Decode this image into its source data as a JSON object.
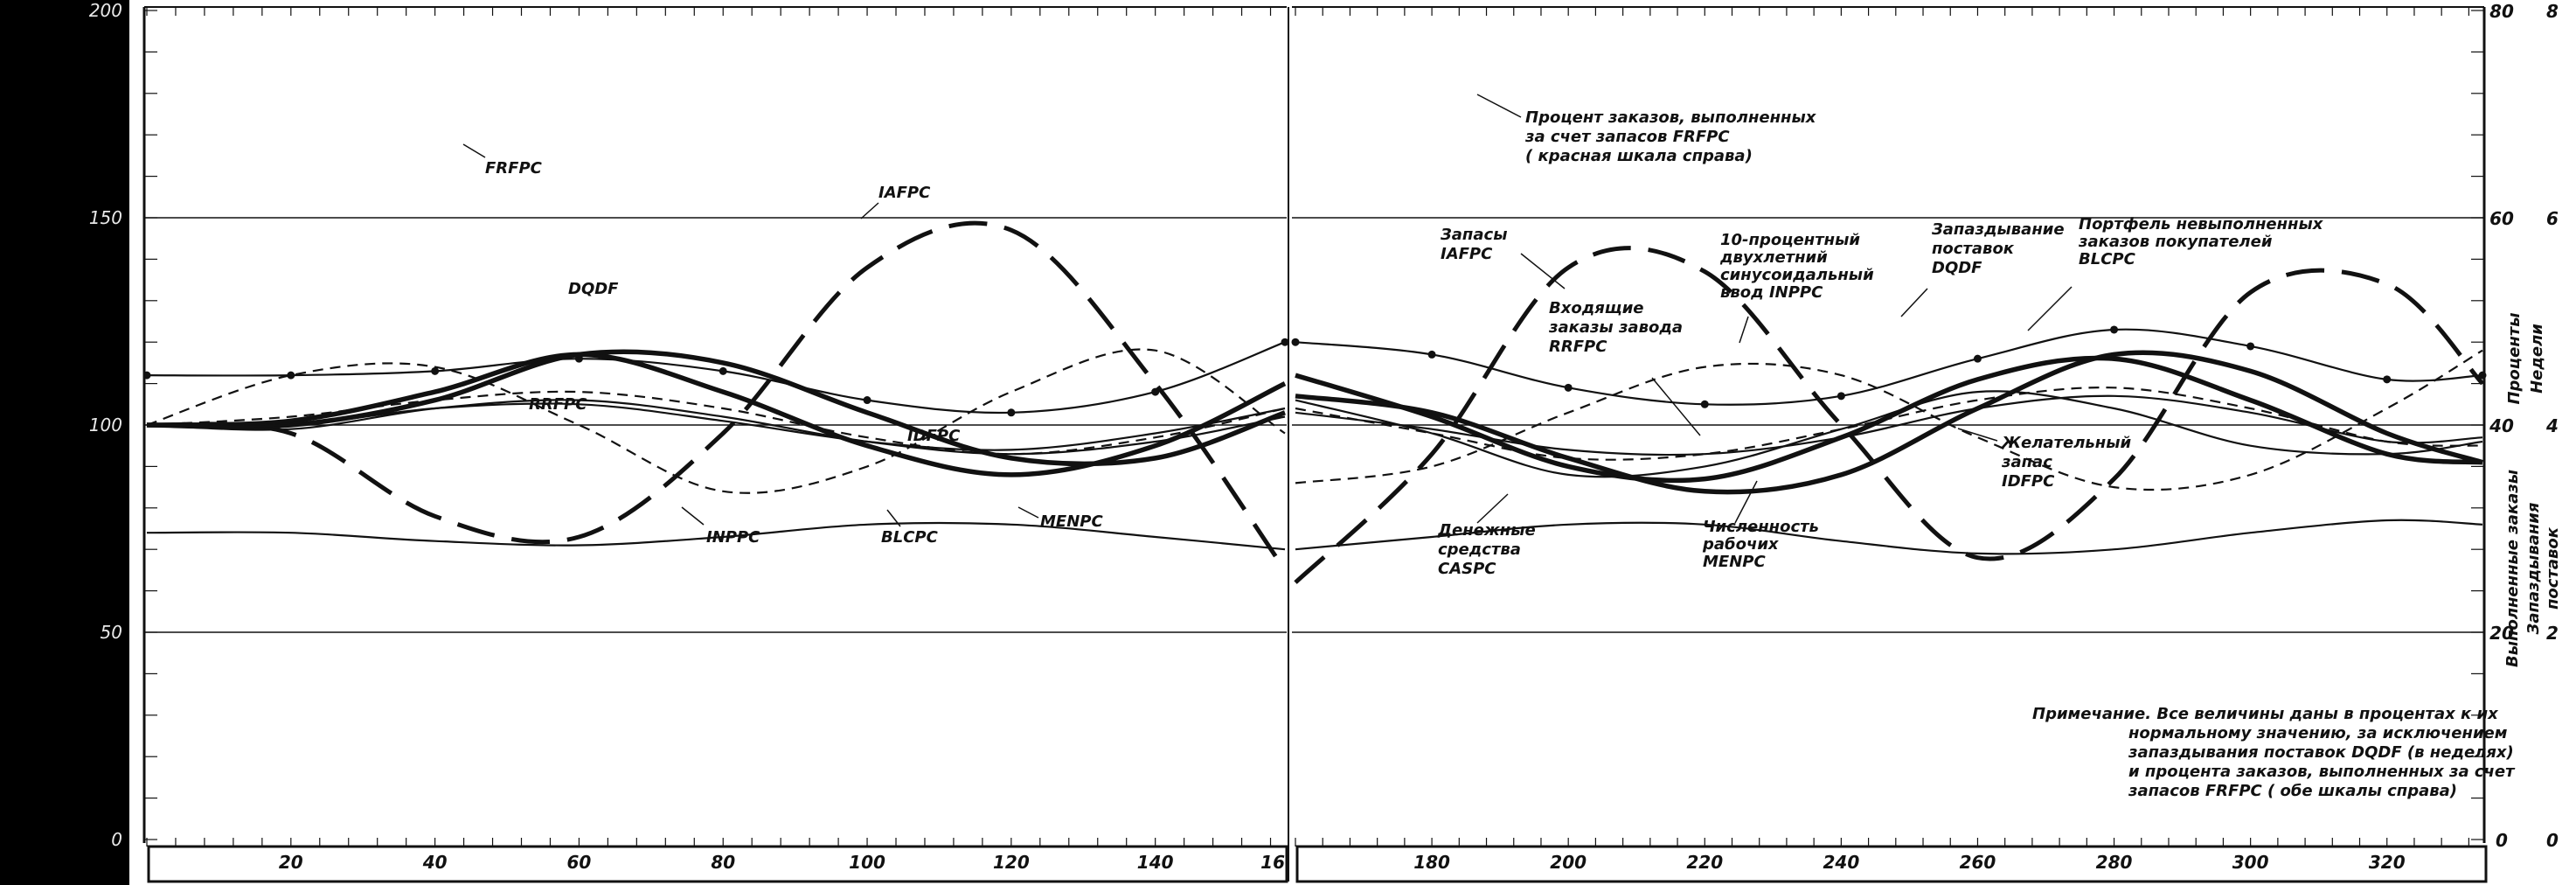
{
  "chart_data": {
    "type": "line",
    "x_ticks_left": [
      "20",
      "40",
      "60",
      "80",
      "100",
      "120",
      "140",
      "16"
    ],
    "x_ticks_right": [
      "180",
      "200",
      "220",
      "240",
      "260",
      "280",
      "300",
      "320"
    ],
    "y_ticks_left": [
      "200",
      "150",
      "100",
      "50",
      "0"
    ],
    "y_ticks_right_percent": [
      "80",
      "60",
      "40",
      "20",
      "0"
    ],
    "y_ticks_right_weeks": [
      "8",
      "6",
      "4",
      "2",
      "0"
    ],
    "xlim": [
      0,
      334
    ],
    "ylim": [
      0,
      200
    ],
    "grid_lines_y": [
      150,
      100,
      50
    ],
    "series": [
      {
        "name": "FRFPC",
        "style": "thin-solid",
        "x": [
          0,
          20,
          40,
          60,
          80,
          100,
          120,
          140,
          158,
          160,
          180,
          200,
          220,
          240,
          260,
          280,
          300,
          320,
          334
        ],
        "y": [
          74,
          74,
          72,
          71,
          73,
          76,
          76,
          73,
          70,
          70,
          73,
          76,
          76,
          72,
          69,
          70,
          74,
          77,
          76
        ]
      },
      {
        "name": "IAFPC",
        "style": "long-dash",
        "x": [
          0,
          20,
          40,
          60,
          80,
          100,
          120,
          140,
          158,
          160,
          180,
          200,
          220,
          240,
          260,
          280,
          300,
          320,
          334
        ],
        "y": [
          100,
          98,
          78,
          73,
          98,
          138,
          147,
          110,
          65,
          62,
          93,
          138,
          137,
          100,
          68,
          87,
          132,
          134,
          110
        ]
      },
      {
        "name": "DQDF",
        "style": "dash-dot",
        "x": [
          0,
          20,
          40,
          60,
          80,
          100,
          120,
          140,
          158,
          160,
          180,
          200,
          220,
          240,
          260,
          280,
          300,
          320,
          334
        ],
        "y": [
          112,
          112,
          113,
          116,
          113,
          106,
          103,
          108,
          120,
          120,
          117,
          109,
          105,
          107,
          116,
          123,
          119,
          111,
          112
        ]
      },
      {
        "name": "RRFPC",
        "style": "thin-solid",
        "x": [
          0,
          20,
          40,
          60,
          80,
          100,
          120,
          140,
          158,
          160,
          180,
          200,
          220,
          240,
          260,
          280,
          300,
          320,
          334
        ],
        "y": [
          100,
          99,
          104,
          106,
          102,
          96,
          93,
          96,
          102,
          103,
          99,
          94,
          93,
          97,
          104,
          107,
          103,
          96,
          97
        ]
      },
      {
        "name": "IDFPC",
        "style": "short-dash",
        "x": [
          0,
          20,
          40,
          60,
          80,
          100,
          120,
          140,
          158,
          160,
          180,
          200,
          220,
          240,
          260,
          280,
          300,
          320,
          334
        ],
        "y": [
          100,
          102,
          106,
          108,
          104,
          97,
          93,
          97,
          104,
          104,
          98,
          92,
          93,
          99,
          106,
          109,
          104,
          96,
          95
        ]
      },
      {
        "name": "INPPC",
        "style": "short-dash",
        "x": [
          0,
          20,
          40,
          60,
          80,
          100,
          120,
          140,
          158,
          160,
          180,
          200,
          220,
          240,
          260,
          280,
          300,
          320,
          334
        ],
        "y": [
          100,
          112,
          114,
          100,
          84,
          90,
          108,
          118,
          98,
          86,
          90,
          103,
          114,
          112,
          97,
          85,
          88,
          104,
          118
        ]
      },
      {
        "name": "BLCPC",
        "style": "thick-solid",
        "x": [
          0,
          20,
          40,
          60,
          80,
          100,
          120,
          140,
          158,
          160,
          180,
          200,
          220,
          240,
          260,
          280,
          300,
          320,
          334
        ],
        "y": [
          100,
          101,
          108,
          117,
          108,
          95,
          88,
          95,
          110,
          112,
          102,
          90,
          87,
          97,
          111,
          116,
          106,
          93,
          91
        ]
      },
      {
        "name": "MENPC",
        "style": "thick-solid",
        "x": [
          0,
          20,
          40,
          60,
          80,
          100,
          120,
          140,
          158,
          160,
          180,
          200,
          220,
          240,
          260,
          280,
          300,
          320,
          334
        ],
        "y": [
          100,
          100,
          106,
          117,
          115,
          103,
          92,
          92,
          103,
          107,
          103,
          92,
          84,
          88,
          104,
          117,
          113,
          98,
          91
        ]
      },
      {
        "name": "CASPC",
        "style": "thin-solid",
        "x": [
          0,
          20,
          40,
          60,
          80,
          100,
          120,
          140,
          158,
          160,
          180,
          200,
          220,
          240,
          260,
          280,
          300,
          320,
          334
        ],
        "y": [
          100,
          100,
          104,
          105,
          101,
          96,
          94,
          98,
          104,
          106,
          98,
          88,
          90,
          99,
          108,
          104,
          95,
          93,
          96
        ]
      }
    ],
    "labels": {
      "FRFPC": "FRFPC",
      "IAFPC": "IAFPC",
      "DQDF": "DQDF",
      "RRFPC": "RRFPC",
      "IDFPC": "IDFPC",
      "INPPC": "INPPC",
      "BLCPC": "BLCPC",
      "MENPC": "MENPC"
    },
    "annotations": {
      "frfpc_note": [
        "Процент заказов, выполненных",
        "за счет запасов FRFPC",
        "( красная шкала справа)"
      ],
      "iafpc_note": [
        "Запасы",
        "IAFPC"
      ],
      "inppc_note": [
        "10-процентный",
        "двухлетний",
        "синусоидальный",
        "ввод INPPC"
      ],
      "dqdf_note": [
        "Запаздывание",
        "поставок",
        "DQDF"
      ],
      "blcpc_note": [
        "Портфель невыполненных",
        "заказов покупателей",
        "BLCPC"
      ],
      "rrfpc_note": [
        "Входящие",
        "заказы завода",
        "RRFPC"
      ],
      "idfpc_note": [
        "Желательный",
        "запас",
        "IDFPC"
      ],
      "caspc_note": [
        "Денежные",
        "средства",
        "CASPC"
      ],
      "menpc_note": [
        "Численность",
        "рабочих",
        "MENPC"
      ],
      "axis_right_percent": "Проценты",
      "axis_right_weeks": "Недели",
      "axis_right_lower1": "Выполненные заказы",
      "axis_right_lower2": "Запаздывания",
      "axis_right_lower3": "поставок",
      "footnote": [
        "Примечание. Все величины даны в процентах к их",
        "нормальному значению, за исключением",
        "запаздывания поставок DQDF (в неделях)",
        "и процента заказов, выполненных за счет",
        "запасов FRFPC ( обе шкалы справа)"
      ]
    }
  }
}
